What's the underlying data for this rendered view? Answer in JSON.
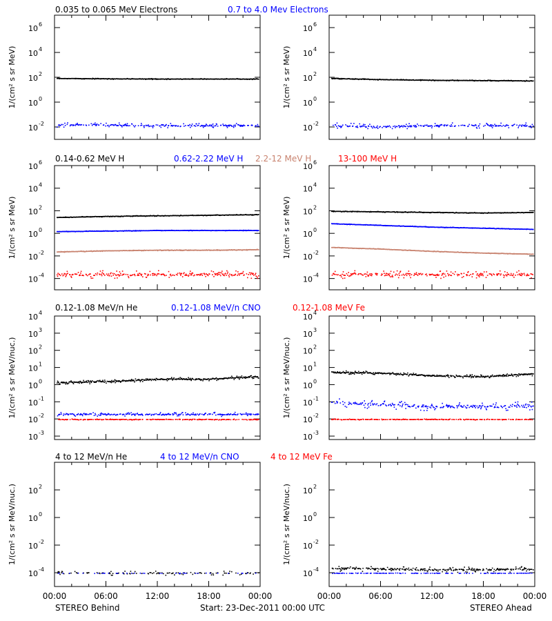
{
  "footer": {
    "left": "STEREO Behind",
    "center": "Start: 23-Dec-2011 00:00 UTC",
    "right": "STEREO Ahead"
  },
  "colors": {
    "black": "#000000",
    "blue": "#0000ff",
    "tan": "#c8826e",
    "red": "#ff0000"
  },
  "x_ticks": [
    "00:00",
    "06:00",
    "12:00",
    "18:00",
    "00:00"
  ],
  "chart_data": [
    {
      "type": "scatter",
      "ylabel": "1/(cm² s sr MeV)",
      "ylim_log10": [
        -3,
        7
      ],
      "y_ticks": [
        {
          "base": "10",
          "exp": "6"
        },
        {
          "base": "10",
          "exp": "4"
        },
        {
          "base": "10",
          "exp": "2"
        },
        {
          "base": "10",
          "exp": "0"
        },
        {
          "base": "10",
          "exp": "-2"
        }
      ],
      "legend": [
        {
          "name": "0.035 to 0.065 MeV Electrons",
          "color": "#000000"
        },
        {
          "name": "0.7 to 4.0 Mev Electrons",
          "color": "#0000ff"
        }
      ],
      "panels": [
        {
          "side": "STEREO Behind",
          "series": [
            {
              "color": "#000000",
              "log10": [
                1.95,
                1.92,
                1.9,
                1.9,
                1.9
              ],
              "scatter": 0.04,
              "density": 1.0
            },
            {
              "color": "#0000ff",
              "log10": [
                -1.8,
                -1.8,
                -1.85,
                -1.85,
                -1.85
              ],
              "scatter": 0.18,
              "density": 0.55
            }
          ]
        },
        {
          "side": "STEREO Ahead",
          "series": [
            {
              "color": "#000000",
              "log10": [
                1.95,
                1.85,
                1.8,
                1.78,
                1.75
              ],
              "scatter": 0.04,
              "density": 1.0
            },
            {
              "color": "#0000ff",
              "log10": [
                -1.85,
                -1.95,
                -1.85,
                -1.85,
                -1.85
              ],
              "scatter": 0.22,
              "density": 0.55
            }
          ]
        }
      ]
    },
    {
      "type": "scatter",
      "ylabel": "1/(cm² s sr MeV)",
      "ylim_log10": [
        -5,
        6
      ],
      "y_ticks": [
        {
          "base": "10",
          "exp": "6"
        },
        {
          "base": "10",
          "exp": "4"
        },
        {
          "base": "10",
          "exp": "2"
        },
        {
          "base": "10",
          "exp": "0"
        },
        {
          "base": "10",
          "exp": "-2"
        },
        {
          "base": "10",
          "exp": "-4"
        }
      ],
      "legend": [
        {
          "name": "0.14-0.62 MeV H",
          "color": "#000000"
        },
        {
          "name": "0.62-2.22 MeV H",
          "color": "#0000ff"
        },
        {
          "name": "2.2-12 MeV H",
          "color": "#c8826e"
        },
        {
          "name": "13-100 MeV H",
          "color": "#ff0000"
        }
      ],
      "panels": [
        {
          "side": "STEREO Behind",
          "series": [
            {
              "color": "#000000",
              "log10": [
                1.45,
                1.55,
                1.6,
                1.65,
                1.7
              ],
              "scatter": 0.04,
              "density": 1.0
            },
            {
              "color": "#0000ff",
              "log10": [
                0.2,
                0.25,
                0.3,
                0.3,
                0.3
              ],
              "scatter": 0.03,
              "density": 1.0
            },
            {
              "color": "#c8826e",
              "log10": [
                -1.6,
                -1.5,
                -1.45,
                -1.45,
                -1.4
              ],
              "scatter": 0.04,
              "density": 1.0
            },
            {
              "color": "#ff0000",
              "log10": [
                -3.6,
                -3.6,
                -3.6,
                -3.6,
                -3.6
              ],
              "scatter": 0.35,
              "density": 0.6
            }
          ]
        },
        {
          "side": "STEREO Ahead",
          "series": [
            {
              "color": "#000000",
              "log10": [
                2.0,
                1.95,
                1.9,
                1.85,
                1.9
              ],
              "scatter": 0.04,
              "density": 1.0
            },
            {
              "color": "#0000ff",
              "log10": [
                0.9,
                0.75,
                0.6,
                0.5,
                0.4
              ],
              "scatter": 0.03,
              "density": 1.0
            },
            {
              "color": "#c8826e",
              "log10": [
                -1.2,
                -1.35,
                -1.55,
                -1.7,
                -1.8
              ],
              "scatter": 0.03,
              "density": 1.0
            },
            {
              "color": "#ff0000",
              "log10": [
                -3.6,
                -3.6,
                -3.6,
                -3.6,
                -3.6
              ],
              "scatter": 0.35,
              "density": 0.6
            }
          ]
        }
      ]
    },
    {
      "type": "scatter",
      "ylabel": "1/(cm² s sr MeV/nuc.)",
      "ylim_log10": [
        -3.2,
        4
      ],
      "y_ticks": [
        {
          "base": "10",
          "exp": "4"
        },
        {
          "base": "10",
          "exp": "3"
        },
        {
          "base": "10",
          "exp": "2"
        },
        {
          "base": "10",
          "exp": "1"
        },
        {
          "base": "10",
          "exp": "0"
        },
        {
          "base": "10",
          "exp": "-1"
        },
        {
          "base": "10",
          "exp": "-2"
        },
        {
          "base": "10",
          "exp": "-3"
        }
      ],
      "legend": [
        {
          "name": "0.12-1.08 MeV/n He",
          "color": "#000000"
        },
        {
          "name": "0.12-1.08 MeV/n CNO",
          "color": "#0000ff"
        },
        {
          "name": "0.12-1.08 MeV Fe",
          "color": "#ff0000"
        }
      ],
      "panels": [
        {
          "side": "STEREO Behind",
          "series": [
            {
              "color": "#000000",
              "log10": [
                0.15,
                0.2,
                0.35,
                0.35,
                0.5
              ],
              "scatter": 0.1,
              "density": 0.9
            },
            {
              "color": "#0000ff",
              "log10": [
                -1.7,
                -1.7,
                -1.7,
                -1.7,
                -1.7
              ],
              "scatter": 0.12,
              "density": 0.6
            },
            {
              "color": "#ff0000",
              "log10": [
                -2.0,
                -2.0,
                -2.0,
                -2.0,
                -2.0
              ],
              "scatter": 0.03,
              "density": 0.55
            }
          ]
        },
        {
          "side": "STEREO Ahead",
          "series": [
            {
              "color": "#000000",
              "log10": [
                0.75,
                0.7,
                0.55,
                0.5,
                0.65
              ],
              "scatter": 0.1,
              "density": 0.9
            },
            {
              "color": "#0000ff",
              "log10": [
                -1.0,
                -1.15,
                -1.25,
                -1.25,
                -1.2
              ],
              "scatter": 0.25,
              "density": 0.6
            },
            {
              "color": "#ff0000",
              "log10": [
                -2.0,
                -2.0,
                -2.0,
                -2.0,
                -2.0
              ],
              "scatter": 0.03,
              "density": 0.55
            }
          ]
        }
      ]
    },
    {
      "type": "scatter",
      "ylabel": "1/(cm² s sr MeV/nuc.)",
      "ylim_log10": [
        -5,
        4
      ],
      "y_ticks": [
        {
          "base": "10",
          "exp": "2"
        },
        {
          "base": "10",
          "exp": "0"
        },
        {
          "base": "10",
          "exp": "-2"
        },
        {
          "base": "10",
          "exp": "-4"
        }
      ],
      "legend": [
        {
          "name": "4 to 12 MeV/n He",
          "color": "#000000"
        },
        {
          "name": "4 to 12 MeV/n CNO",
          "color": "#0000ff"
        },
        {
          "name": "4 to 12 MeV Fe",
          "color": "#ff0000"
        }
      ],
      "panels": [
        {
          "side": "STEREO Behind",
          "series": [
            {
              "color": "#000000",
              "log10": [
                -4.0,
                -4.0,
                -4.0,
                -4.0,
                -4.0
              ],
              "scatter": 0.15,
              "density": 0.3
            },
            {
              "color": "#0000ff",
              "log10": [
                -4.0,
                -4.0,
                -4.0,
                -4.0,
                -4.0
              ],
              "scatter": 0.02,
              "density": 0.1
            }
          ]
        },
        {
          "side": "STEREO Ahead",
          "series": [
            {
              "color": "#000000",
              "log10": [
                -3.65,
                -3.7,
                -3.75,
                -3.75,
                -3.7
              ],
              "scatter": 0.2,
              "density": 0.6
            },
            {
              "color": "#0000ff",
              "log10": [
                -4.0,
                -4.0,
                -4.0,
                -4.0,
                -4.0
              ],
              "scatter": 0.02,
              "density": 0.3
            }
          ]
        }
      ]
    }
  ]
}
